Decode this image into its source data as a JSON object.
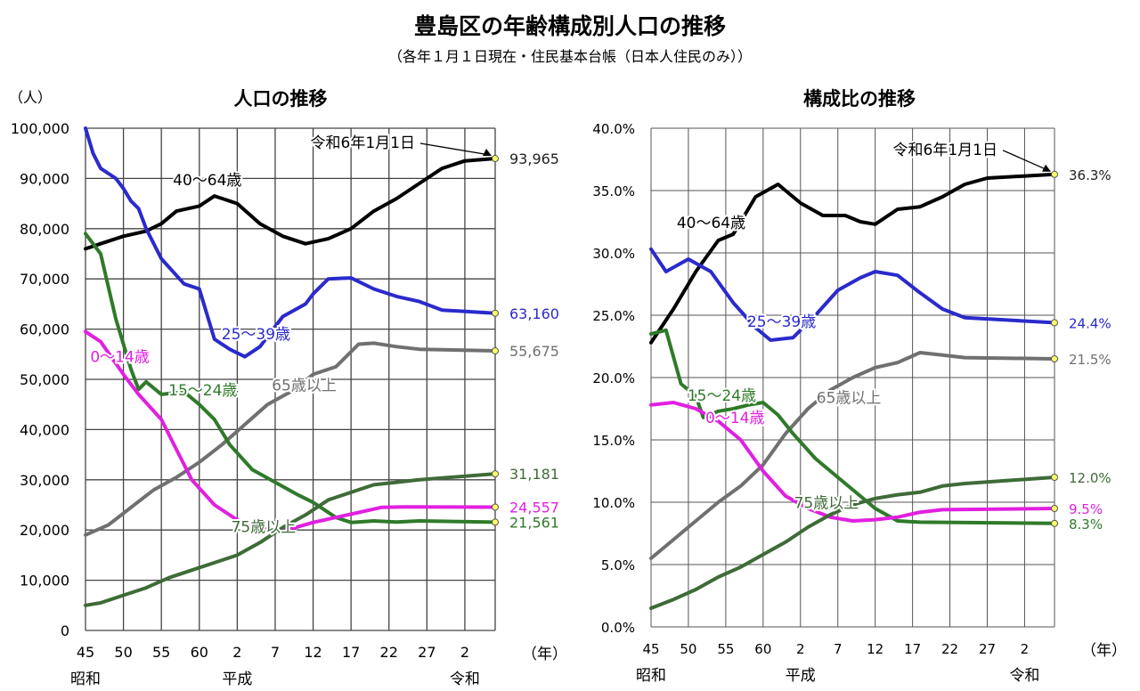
{
  "page": {
    "title": "豊島区の年齢構成別人口の推移",
    "subtitle": "（各年１月１日現在・住民基本台帳（日本人住民のみ））"
  },
  "chart_data": [
    {
      "type": "line",
      "title": "人口の推移",
      "y_unit_label": "（人）",
      "x_unit_label": "（年）",
      "x_tick_labels": [
        "45",
        "50",
        "55",
        "60",
        "2",
        "7",
        "12",
        "17",
        "22",
        "27",
        "2"
      ],
      "x_era_labels": [
        {
          "at": 1970,
          "text": "昭和"
        },
        {
          "at": 1990,
          "text": "平成"
        },
        {
          "at": 2020,
          "text": "令和"
        }
      ],
      "y_tick_labels": [
        "100,000",
        "90,000",
        "80,000",
        "70,000",
        "60,000",
        "50,000",
        "40,000",
        "30,000",
        "20,000",
        "10,000",
        "0"
      ],
      "xlim": [
        1970,
        2024
      ],
      "ylim": [
        0,
        100000
      ],
      "grid": true,
      "callout": {
        "text": "令和6年1月1日",
        "at": 2024
      },
      "series": [
        {
          "name": "40～64歳",
          "color": "#000000",
          "end_label": "93,965",
          "label_at": 1987,
          "points": [
            [
              1970,
              76000
            ],
            [
              1972,
              77000
            ],
            [
              1975,
              78500
            ],
            [
              1978,
              79500
            ],
            [
              1980,
              81000
            ],
            [
              1982,
              83500
            ],
            [
              1985,
              84500
            ],
            [
              1987,
              86500
            ],
            [
              1990,
              85000
            ],
            [
              1993,
              81000
            ],
            [
              1996,
              78500
            ],
            [
              1999,
              77000
            ],
            [
              2002,
              78000
            ],
            [
              2005,
              80000
            ],
            [
              2008,
              83500
            ],
            [
              2011,
              86000
            ],
            [
              2014,
              89000
            ],
            [
              2017,
              92000
            ],
            [
              2020,
              93500
            ],
            [
              2024,
              93965
            ]
          ]
        },
        {
          "name": "25～39歳",
          "color": "#2a2acc",
          "end_label": "63,160",
          "label_at": 1992,
          "points": [
            [
              1970,
              100000
            ],
            [
              1971,
              95000
            ],
            [
              1972,
              92000
            ],
            [
              1974,
              90000
            ],
            [
              1975,
              88000
            ],
            [
              1976,
              85500
            ],
            [
              1977,
              84000
            ],
            [
              1978,
              80000
            ],
            [
              1980,
              74000
            ],
            [
              1983,
              69000
            ],
            [
              1985,
              68000
            ],
            [
              1987,
              58000
            ],
            [
              1989,
              56000
            ],
            [
              1991,
              54500
            ],
            [
              1993,
              56500
            ],
            [
              1996,
              62500
            ],
            [
              1999,
              65000
            ],
            [
              2000,
              67000
            ],
            [
              2002,
              70000
            ],
            [
              2005,
              70200
            ],
            [
              2008,
              68000
            ],
            [
              2011,
              66500
            ],
            [
              2014,
              65500
            ],
            [
              2017,
              63800
            ],
            [
              2024,
              63160
            ]
          ]
        },
        {
          "name": "65歳以上",
          "color": "#707070",
          "end_label": "55,675",
          "label_at": 2000,
          "points": [
            [
              1970,
              19000
            ],
            [
              1973,
              21000
            ],
            [
              1976,
              24500
            ],
            [
              1979,
              28000
            ],
            [
              1982,
              30500
            ],
            [
              1985,
              33500
            ],
            [
              1988,
              37000
            ],
            [
              1991,
              41000
            ],
            [
              1994,
              45000
            ],
            [
              1997,
              47500
            ],
            [
              2000,
              51000
            ],
            [
              2003,
              52500
            ],
            [
              2006,
              57000
            ],
            [
              2008,
              57200
            ],
            [
              2011,
              56500
            ],
            [
              2014,
              56000
            ],
            [
              2024,
              55675
            ]
          ]
        },
        {
          "name": "15～24歳",
          "color": "#2f7a2a",
          "end_label": "21,561",
          "label_at": 1985,
          "points": [
            [
              1970,
              79000
            ],
            [
              1972,
              75000
            ],
            [
              1974,
              62000
            ],
            [
              1976,
              52000
            ],
            [
              1977,
              48000
            ],
            [
              1978,
              49500
            ],
            [
              1980,
              47000
            ],
            [
              1983,
              47500
            ],
            [
              1985,
              45000
            ],
            [
              1987,
              42000
            ],
            [
              1989,
              37000
            ],
            [
              1992,
              32000
            ],
            [
              1995,
              29500
            ],
            [
              1998,
              27000
            ],
            [
              2000,
              25500
            ],
            [
              2003,
              22500
            ],
            [
              2005,
              21500
            ],
            [
              2008,
              21800
            ],
            [
              2011,
              21600
            ],
            [
              2014,
              21800
            ],
            [
              2024,
              21561
            ]
          ]
        },
        {
          "name": "0～14歳",
          "color": "#e020e0",
          "end_label": "24,557",
          "label_at": 1975,
          "points": [
            [
              1970,
              59500
            ],
            [
              1972,
              57500
            ],
            [
              1975,
              51000
            ],
            [
              1977,
              47000
            ],
            [
              1980,
              42000
            ],
            [
              1982,
              36000
            ],
            [
              1984,
              30000
            ],
            [
              1987,
              25000
            ],
            [
              1990,
              22000
            ],
            [
              1993,
              20500
            ],
            [
              1995,
              20000
            ],
            [
              1997,
              20200
            ],
            [
              2000,
              21500
            ],
            [
              2003,
              22500
            ],
            [
              2006,
              23500
            ],
            [
              2009,
              24500
            ],
            [
              2012,
              24600
            ],
            [
              2024,
              24557
            ]
          ]
        },
        {
          "name": "75歳以上",
          "color": "#3e6b37",
          "end_label": "31,181",
          "label_at": 1993,
          "points": [
            [
              1970,
              5000
            ],
            [
              1972,
              5500
            ],
            [
              1975,
              7000
            ],
            [
              1978,
              8500
            ],
            [
              1981,
              10500
            ],
            [
              1984,
              12000
            ],
            [
              1987,
              13500
            ],
            [
              1990,
              15000
            ],
            [
              1993,
              17500
            ],
            [
              1996,
              20500
            ],
            [
              1999,
              23000
            ],
            [
              2002,
              26000
            ],
            [
              2005,
              27500
            ],
            [
              2008,
              29000
            ],
            [
              2011,
              29500
            ],
            [
              2014,
              30000
            ],
            [
              2024,
              31181
            ]
          ]
        }
      ]
    },
    {
      "type": "line",
      "title": "構成比の推移",
      "x_unit_label": "（年）",
      "x_tick_labels": [
        "45",
        "50",
        "55",
        "60",
        "2",
        "7",
        "12",
        "17",
        "22",
        "27",
        "2"
      ],
      "x_era_labels": [
        {
          "at": 1970,
          "text": "昭和"
        },
        {
          "at": 1990,
          "text": "平成"
        },
        {
          "at": 2020,
          "text": "令和"
        }
      ],
      "y_tick_labels": [
        "40.0%",
        "35.0%",
        "30.0%",
        "25.0%",
        "20.0%",
        "15.0%",
        "10.0%",
        "5.0%",
        "0.0%"
      ],
      "xlim": [
        1970,
        2024
      ],
      "ylim": [
        0,
        40
      ],
      "grid": true,
      "callout": {
        "text": "令和6年1月1日",
        "at": 2024
      },
      "series": [
        {
          "name": "40～64歳",
          "color": "#000000",
          "end_label": "36.3%",
          "label_at": 1979,
          "points": [
            [
              1970,
              22.8
            ],
            [
              1973,
              25.5
            ],
            [
              1976,
              28.5
            ],
            [
              1979,
              31.0
            ],
            [
              1981,
              31.5
            ],
            [
              1984,
              34.5
            ],
            [
              1987,
              35.5
            ],
            [
              1990,
              34.0
            ],
            [
              1993,
              33.0
            ],
            [
              1996,
              33.0
            ],
            [
              1998,
              32.5
            ],
            [
              2000,
              32.3
            ],
            [
              2003,
              33.5
            ],
            [
              2006,
              33.7
            ],
            [
              2009,
              34.5
            ],
            [
              2012,
              35.5
            ],
            [
              2015,
              36.0
            ],
            [
              2024,
              36.3
            ]
          ]
        },
        {
          "name": "25～39歳",
          "color": "#2a2acc",
          "end_label": "24.4%",
          "label_at": 1987,
          "points": [
            [
              1970,
              30.3
            ],
            [
              1972,
              28.5
            ],
            [
              1975,
              29.5
            ],
            [
              1978,
              28.5
            ],
            [
              1981,
              26.0
            ],
            [
              1984,
              24.0
            ],
            [
              1986,
              23.0
            ],
            [
              1989,
              23.2
            ],
            [
              1992,
              25.0
            ],
            [
              1995,
              27.0
            ],
            [
              1998,
              28.0
            ],
            [
              2000,
              28.5
            ],
            [
              2003,
              28.2
            ],
            [
              2006,
              26.8
            ],
            [
              2009,
              25.5
            ],
            [
              2012,
              24.8
            ],
            [
              2024,
              24.4
            ]
          ]
        },
        {
          "name": "65歳以上",
          "color": "#707070",
          "end_label": "21.5%",
          "label_at": 1996,
          "points": [
            [
              1970,
              5.5
            ],
            [
              1973,
              7.0
            ],
            [
              1976,
              8.5
            ],
            [
              1979,
              10.0
            ],
            [
              1982,
              11.3
            ],
            [
              1985,
              13.0
            ],
            [
              1988,
              15.5
            ],
            [
              1991,
              17.5
            ],
            [
              1994,
              19.0
            ],
            [
              1997,
              20.0
            ],
            [
              2000,
              20.8
            ],
            [
              2003,
              21.2
            ],
            [
              2006,
              22.0
            ],
            [
              2009,
              21.8
            ],
            [
              2012,
              21.6
            ],
            [
              2024,
              21.5
            ]
          ]
        },
        {
          "name": "15～24歳",
          "color": "#2f7a2a",
          "end_label": "8.3%",
          "label_at": 1979,
          "points": [
            [
              1970,
              23.5
            ],
            [
              1972,
              23.8
            ],
            [
              1974,
              19.5
            ],
            [
              1976,
              18.5
            ],
            [
              1977,
              16.8
            ],
            [
              1979,
              17.3
            ],
            [
              1981,
              17.5
            ],
            [
              1983,
              17.8
            ],
            [
              1985,
              18.0
            ],
            [
              1987,
              17.0
            ],
            [
              1989,
              15.5
            ],
            [
              1992,
              13.5
            ],
            [
              1995,
              12.0
            ],
            [
              1998,
              10.5
            ],
            [
              2000,
              9.5
            ],
            [
              2003,
              8.5
            ],
            [
              2006,
              8.4
            ],
            [
              2024,
              8.3
            ]
          ]
        },
        {
          "name": "0～14歳",
          "color": "#e020e0",
          "end_label": "9.5%",
          "label_at": 1981,
          "points": [
            [
              1970,
              17.8
            ],
            [
              1973,
              18.0
            ],
            [
              1976,
              17.5
            ],
            [
              1979,
              16.5
            ],
            [
              1982,
              15.0
            ],
            [
              1985,
              12.5
            ],
            [
              1988,
              10.5
            ],
            [
              1991,
              9.5
            ],
            [
              1994,
              8.8
            ],
            [
              1997,
              8.5
            ],
            [
              2000,
              8.6
            ],
            [
              2003,
              8.8
            ],
            [
              2006,
              9.2
            ],
            [
              2009,
              9.4
            ],
            [
              2024,
              9.5
            ]
          ]
        },
        {
          "name": "75歳以上",
          "color": "#3e6b37",
          "end_label": "12.0%",
          "label_at": 1993,
          "points": [
            [
              1970,
              1.5
            ],
            [
              1973,
              2.2
            ],
            [
              1976,
              3.0
            ],
            [
              1979,
              4.0
            ],
            [
              1982,
              4.8
            ],
            [
              1985,
              5.8
            ],
            [
              1988,
              6.8
            ],
            [
              1991,
              8.0
            ],
            [
              1994,
              9.0
            ],
            [
              1997,
              9.8
            ],
            [
              2000,
              10.3
            ],
            [
              2003,
              10.6
            ],
            [
              2006,
              10.8
            ],
            [
              2009,
              11.3
            ],
            [
              2012,
              11.5
            ],
            [
              2024,
              12.0
            ]
          ]
        }
      ]
    }
  ]
}
